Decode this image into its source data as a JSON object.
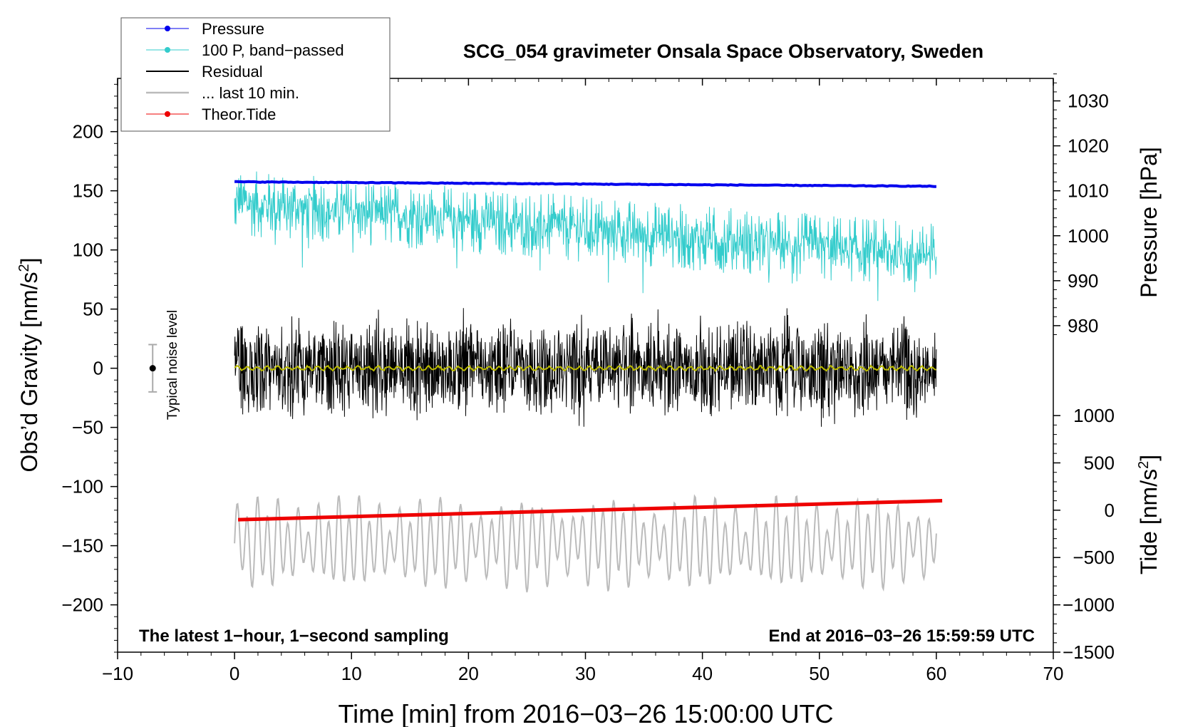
{
  "chart_data": {
    "type": "line",
    "title": "SCG_054 gravimeter Onsala Space Observatory, Sweden",
    "xlabel": "Time [min] from 2016−03−26 15:00:00 UTC",
    "ylabel_left_base": "Obs’d Gravity [nm/s",
    "ylabel_left_sup": "2",
    "ylabel_left_end": "]",
    "ylabel_right_top": "Pressure [hPa]",
    "ylabel_right_bottom_base": "Tide [nm/s",
    "ylabel_right_bottom_sup": "2",
    "ylabel_right_bottom_end": "]",
    "xlim": [
      -10,
      70
    ],
    "ylim_left": [
      -240,
      245
    ],
    "pressure_axis": {
      "ticks": [
        980,
        990,
        1000,
        1010,
        1020,
        1030
      ],
      "gravity_at_980": 36,
      "gravity_per_hpa": 3.8
    },
    "tide_axis": {
      "ticks": [
        1000,
        500,
        0,
        -500,
        -1000,
        -1500
      ],
      "gravity_at_0": -120,
      "gravity_per_unit": 0.08
    },
    "x_ticks": [
      "−10",
      "0",
      "10",
      "20",
      "30",
      "40",
      "50",
      "60",
      "70"
    ],
    "x_tick_values": [
      -10,
      0,
      10,
      20,
      30,
      40,
      50,
      60,
      70
    ],
    "y_ticks": [
      "200",
      "150",
      "100",
      "50",
      "0",
      "−50",
      "−100",
      "−150",
      "−200"
    ],
    "y_tick_values": [
      200,
      150,
      100,
      50,
      0,
      -50,
      -100,
      -150,
      -200
    ],
    "pressure_tick_labels": [
      "980",
      "990",
      "1000",
      "1010",
      "1020",
      "1030"
    ],
    "tide_tick_labels": [
      "1000",
      "500",
      "0",
      "−500",
      "−1000",
      "−1500"
    ],
    "legend": [
      "Pressure",
      "100 P, band−passed",
      "Residual",
      "... last 10 min.",
      "Theor.Tide"
    ],
    "legend_position": "top-left",
    "noise_label": "Typical noise level",
    "noise_bar": {
      "center": 0,
      "half_range": 20,
      "x": -7
    },
    "annotation_left": "The latest 1−hour, 1−second sampling",
    "annotation_right": "End at 2016−03−26 15:59:59 UTC",
    "series": [
      {
        "name": "Pressure",
        "color": "#0000ee",
        "x_range": [
          0,
          60
        ],
        "start_hpa": 1012.0,
        "end_hpa": 1011.0
      },
      {
        "name": "100 P, band-passed",
        "color": "#33cccc",
        "x_range": [
          0,
          60
        ],
        "gravity_start": 140,
        "gravity_end": 95,
        "amplitude": 28
      },
      {
        "name": "Residual",
        "color": "#000000",
        "x_range": [
          0,
          60
        ],
        "center": 0,
        "amplitude": 45
      },
      {
        "name": "Residual smoothed",
        "color": "#bbbb00",
        "x_range": [
          0,
          60
        ],
        "center": 0
      },
      {
        "name": "... last 10 min.",
        "color": "#bbbbbb",
        "x_range": [
          0,
          60
        ],
        "center_tide": -350,
        "amplitude_tide": 400
      },
      {
        "name": "Theor.Tide",
        "color": "#ee0000",
        "x_range": [
          0.3,
          60.5
        ],
        "tide_start": -100,
        "tide_end": 100
      }
    ],
    "colors": {
      "pressure": "#0000ee",
      "bandpass": "#33cccc",
      "residual": "#000000",
      "smooth": "#bbbb00",
      "last10": "#bbbbbb",
      "tide": "#ee0000"
    }
  }
}
